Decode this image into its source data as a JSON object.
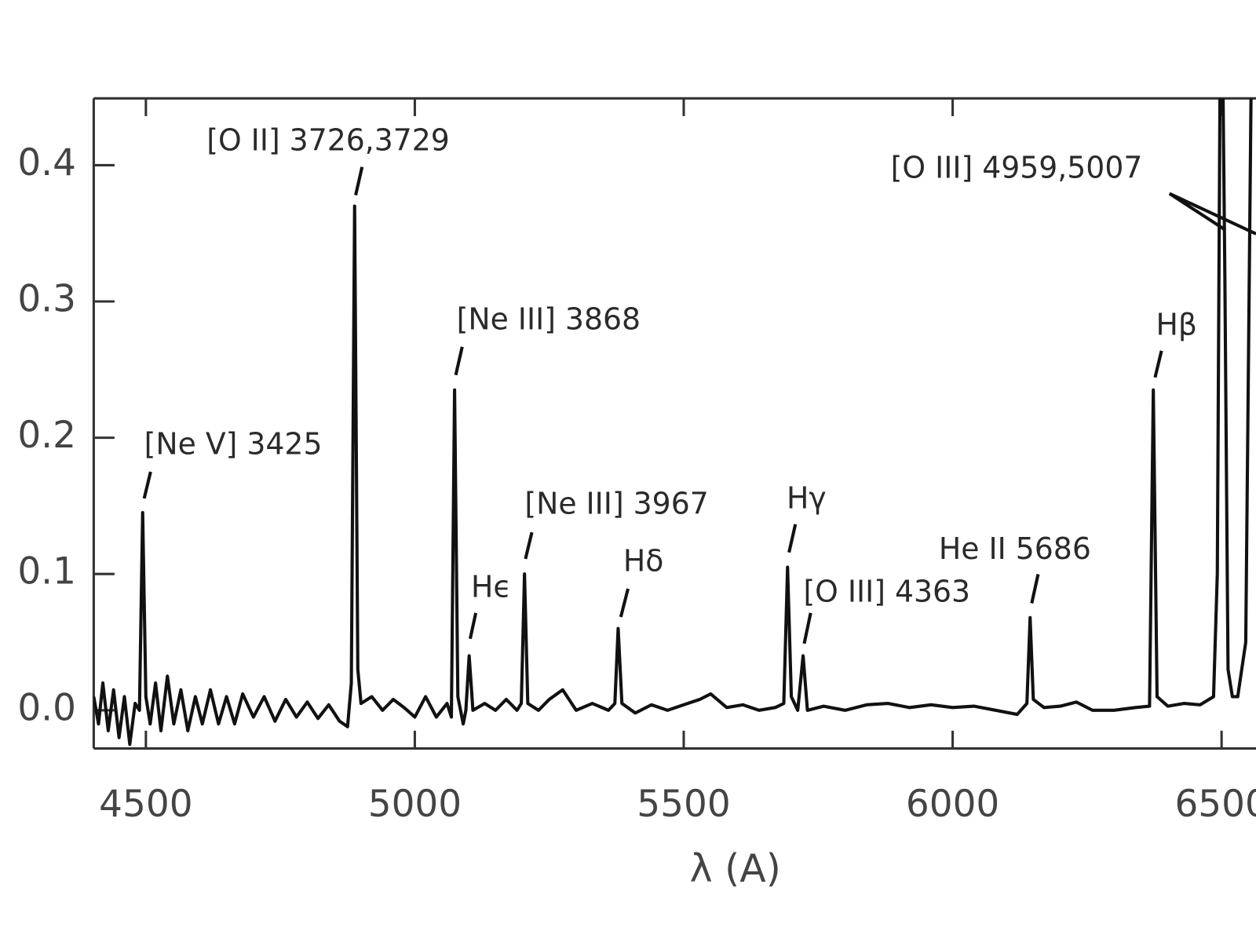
{
  "chart_data": {
    "type": "line",
    "x_label": "λ (A)",
    "color": "#111111",
    "xlim": [
      4403,
      6564
    ],
    "ylim": [
      -0.028,
      0.449
    ],
    "xticks": [
      4500,
      5000,
      5500,
      6000,
      6500
    ],
    "yticks": [
      {
        "value": 0,
        "label": "0.0"
      },
      0.1,
      0.2,
      0.3,
      0.4
    ],
    "annotations": [
      "[Ne V] 3425",
      "[O II] 3726,3729",
      "[Ne III] 3868",
      "Hϵ",
      "[Ne III] 3967",
      "Hδ",
      "Hγ",
      "[O III] 4363",
      "He II 5686",
      "Hβ",
      "[O III] 4959,5007"
    ],
    "x": [
      4403,
      4412,
      4420,
      4430,
      4440,
      4450,
      4460,
      4470,
      4480,
      4488,
      4494,
      4500,
      4508,
      4518,
      4528,
      4540,
      4552,
      4565,
      4578,
      4592,
      4605,
      4620,
      4635,
      4650,
      4665,
      4680,
      4700,
      4720,
      4740,
      4760,
      4780,
      4800,
      4820,
      4840,
      4860,
      4875,
      4882,
      4888,
      4894,
      4900,
      4920,
      4940,
      4960,
      4980,
      5000,
      5020,
      5040,
      5060,
      5068,
      5074,
      5080,
      5090,
      5095,
      5101,
      5108,
      5130,
      5150,
      5170,
      5190,
      5198,
      5204,
      5210,
      5230,
      5250,
      5275,
      5300,
      5330,
      5360,
      5372,
      5378,
      5385,
      5410,
      5440,
      5470,
      5500,
      5530,
      5550,
      5580,
      5610,
      5640,
      5670,
      5686,
      5693,
      5700,
      5712,
      5722,
      5730,
      5760,
      5800,
      5840,
      5880,
      5920,
      5960,
      6000,
      6040,
      6080,
      6120,
      6138,
      6144,
      6150,
      6170,
      6200,
      6230,
      6260,
      6300,
      6340,
      6366,
      6373,
      6380,
      6400,
      6430,
      6460,
      6485,
      6492,
      6499,
      6506,
      6512,
      6520,
      6530,
      6545,
      6556
    ],
    "values": [
      0.01,
      -0.01,
      0.02,
      -0.015,
      0.015,
      -0.02,
      0.01,
      -0.025,
      0.005,
      0.0,
      0.145,
      0.01,
      -0.01,
      0.02,
      -0.015,
      0.025,
      -0.01,
      0.015,
      -0.015,
      0.01,
      -0.01,
      0.015,
      -0.01,
      0.01,
      -0.01,
      0.012,
      -0.005,
      0.01,
      -0.008,
      0.008,
      -0.005,
      0.006,
      -0.006,
      0.004,
      -0.008,
      -0.012,
      0.02,
      0.37,
      0.03,
      0.005,
      0.01,
      0.0,
      0.008,
      0.002,
      -0.005,
      0.01,
      -0.005,
      0.005,
      -0.005,
      0.235,
      0.01,
      -0.01,
      0.0,
      0.04,
      0.0,
      0.005,
      0.0,
      0.008,
      0.0,
      0.005,
      0.1,
      0.005,
      0.0,
      0.008,
      0.015,
      0.0,
      0.005,
      0.0,
      0.005,
      0.06,
      0.005,
      -0.002,
      0.004,
      0.0,
      0.004,
      0.008,
      0.012,
      0.002,
      0.004,
      0.0,
      0.002,
      0.005,
      0.105,
      0.01,
      0.0,
      0.04,
      0.0,
      0.003,
      0.0,
      0.004,
      0.005,
      0.002,
      0.004,
      0.002,
      0.003,
      0.0,
      -0.003,
      0.005,
      0.068,
      0.008,
      0.002,
      0.003,
      0.006,
      0.0,
      0.0,
      0.002,
      0.003,
      0.235,
      0.01,
      0.003,
      0.005,
      0.004,
      0.01,
      0.1,
      0.6,
      0.32,
      0.03,
      0.01,
      0.01,
      0.05,
      0.5
    ]
  }
}
